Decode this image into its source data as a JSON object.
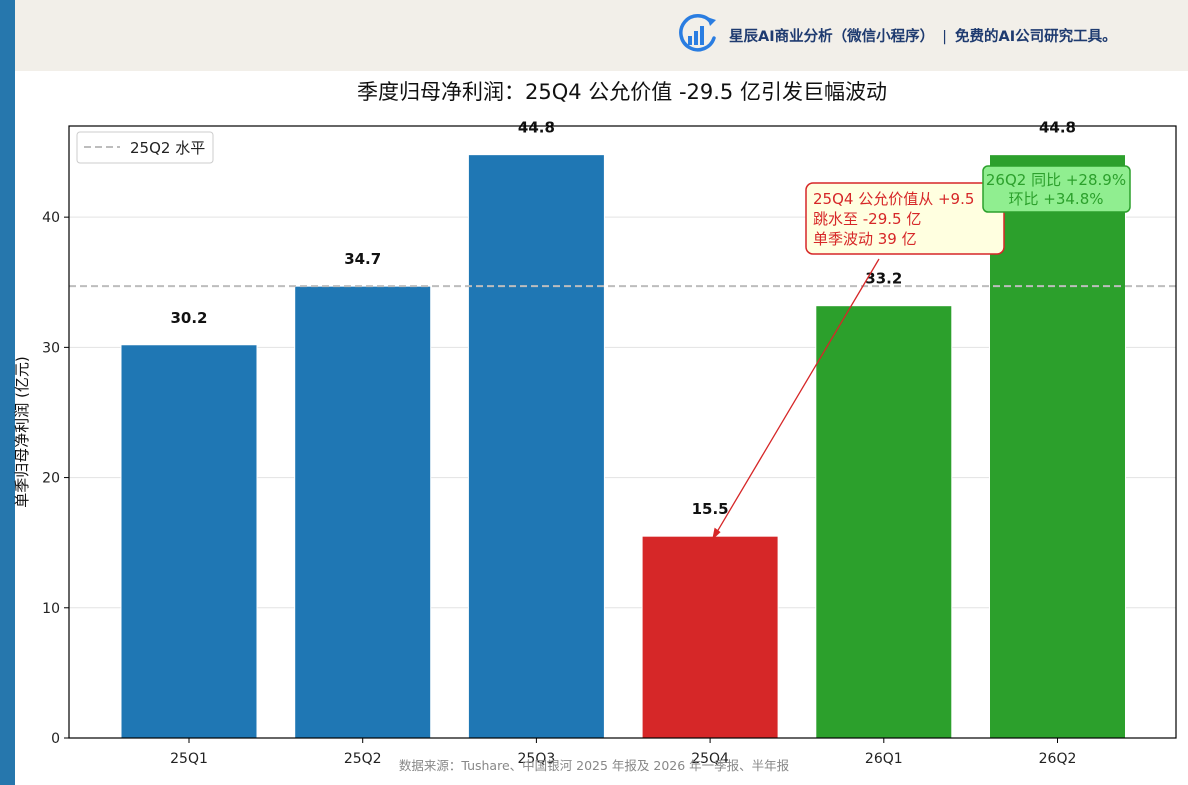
{
  "header": {
    "brand": "星辰AI商业分析（微信小程序）",
    "separator": "|",
    "tagline": "免费的AI公司研究工具。",
    "logo_icon": "bar-chart-circle-icon"
  },
  "colors": {
    "stripe": "#2677ad",
    "header_bg": "#f2efe9",
    "blue": "#1f77b4",
    "red": "#d62728",
    "green": "#2ca02c",
    "ref_line": "#bdbdbd"
  },
  "chart_data": {
    "type": "bar",
    "title": "季度归母净利润：25Q4 公允价值 -29.5 亿引发巨幅波动",
    "xlabel": "",
    "ylabel": "单季归母净利润 (亿元)",
    "categories": [
      "25Q1",
      "25Q2",
      "25Q3",
      "25Q4",
      "26Q1",
      "26Q2"
    ],
    "values": [
      30.2,
      34.7,
      44.8,
      15.5,
      33.2,
      44.8
    ],
    "value_labels": [
      "30.2",
      "34.7",
      "44.8",
      "15.5",
      "33.2",
      "44.8"
    ],
    "bar_colors": [
      "#1f77b4",
      "#1f77b4",
      "#1f77b4",
      "#d62728",
      "#2ca02c",
      "#2ca02c"
    ],
    "ylim": [
      0,
      47
    ],
    "yticks": [
      0,
      10,
      20,
      30,
      40
    ],
    "grid": "horizontal",
    "reference_line": {
      "value": 34.7,
      "label": "25Q2 水平",
      "style": "dashed"
    },
    "legend": {
      "placement": "top-left",
      "entries": [
        "25Q2 水平"
      ]
    },
    "annotations": [
      {
        "lines": [
          "25Q4 公允价值从 +9.5",
          "跳水至 -29.5 亿",
          "单季波动 39 亿"
        ],
        "target_category": "25Q4",
        "target_value": 15.5,
        "color": "#d62728",
        "fill": "#ffffe0"
      },
      {
        "lines": [
          "26Q2 同比 +28.9%",
          "环比 +34.8%"
        ],
        "color": "#2ca02c",
        "fill": "#90ee90"
      }
    ],
    "source": "数据来源：Tushare、中国银河 2025 年报及 2026 年一季报、半年报"
  }
}
